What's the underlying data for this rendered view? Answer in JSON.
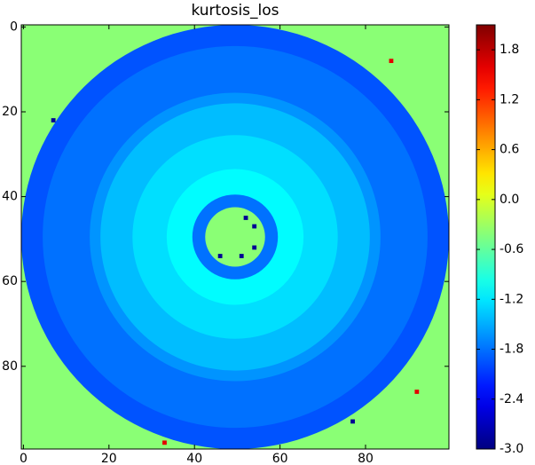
{
  "chart_data": {
    "type": "heatmap",
    "title": "kurtosis_los",
    "xlim": [
      -0.5,
      99.5
    ],
    "ylim": [
      99.5,
      -0.5
    ],
    "xticks": [
      0,
      20,
      40,
      60,
      80
    ],
    "yticks": [
      0,
      20,
      40,
      60,
      80
    ],
    "colormap": "jet",
    "clim": [
      -3.0,
      2.1
    ],
    "cticks": [
      {
        "value": -3.0,
        "label": "-3.0"
      },
      -2.4,
      -1.8,
      -1.2,
      -0.6,
      {
        "value": 0,
        "label": "0.0"
      },
      0.6,
      1.2,
      1.8
    ],
    "background": -0.4,
    "center": [
      49.5,
      49.5
    ],
    "regions": [
      {
        "radius": 50,
        "value": -1.95
      },
      {
        "radius": 45,
        "value": -1.8
      },
      {
        "radius": 34,
        "value": -1.62
      },
      {
        "radius": 31.5,
        "value": -1.42
      },
      {
        "radius": 24,
        "value": -1.25
      },
      {
        "radius": 16,
        "value": -1.1
      },
      {
        "radius": 10,
        "value": -1.8
      },
      {
        "radius": 7,
        "value": -0.4
      }
    ],
    "points": {
      "x": [
        52,
        54,
        54,
        51,
        46,
        7,
        86,
        92,
        33,
        77
      ],
      "y": [
        45,
        47,
        52,
        54,
        54,
        22,
        8,
        86,
        98,
        93
      ],
      "values": [
        -2.9,
        -2.9,
        -2.9,
        -2.9,
        -2.9,
        -2.9,
        1.6,
        1.6,
        1.6,
        -2.9
      ]
    }
  }
}
